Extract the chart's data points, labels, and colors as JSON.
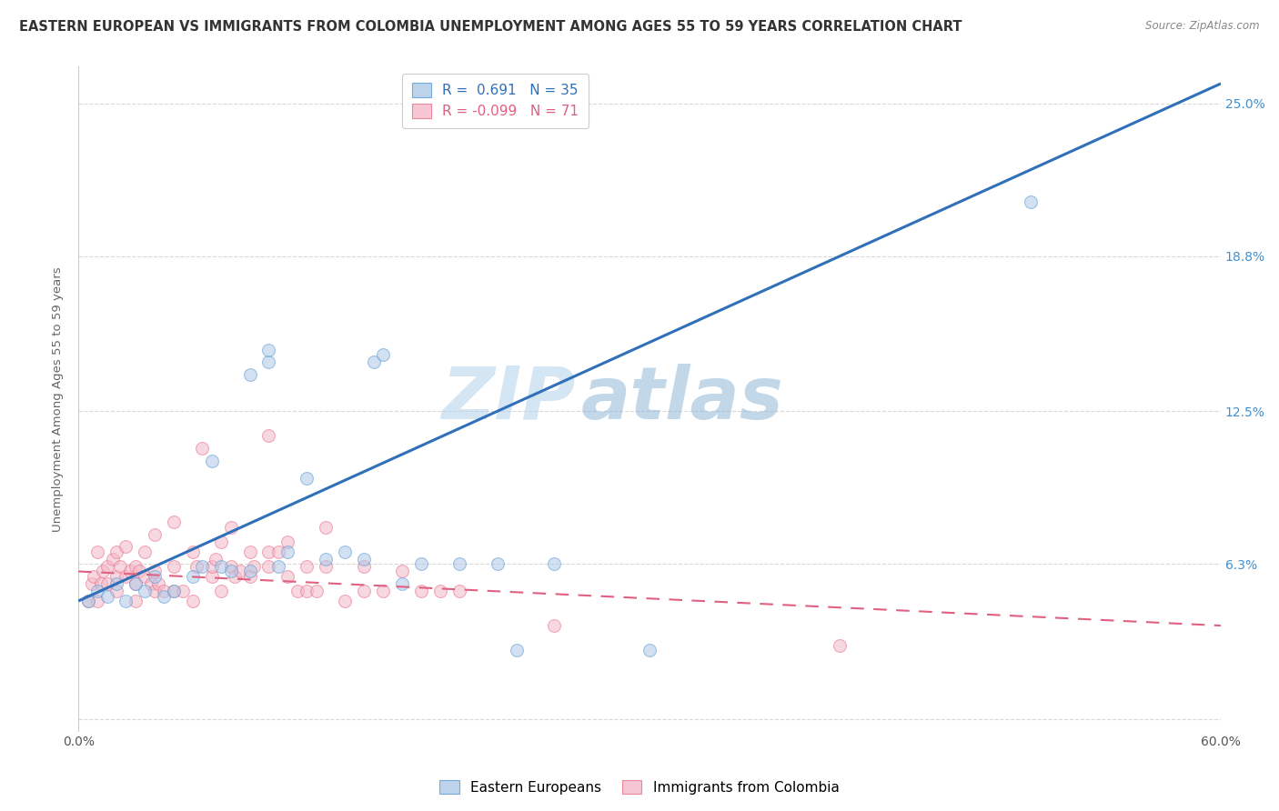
{
  "title": "EASTERN EUROPEAN VS IMMIGRANTS FROM COLOMBIA UNEMPLOYMENT AMONG AGES 55 TO 59 YEARS CORRELATION CHART",
  "source": "Source: ZipAtlas.com",
  "xlabel": "",
  "ylabel": "Unemployment Among Ages 55 to 59 years",
  "xlim": [
    0.0,
    0.6
  ],
  "ylim": [
    -0.005,
    0.265
  ],
  "xticks": [
    0.0,
    0.1,
    0.2,
    0.3,
    0.4,
    0.5,
    0.6
  ],
  "xticklabels": [
    "0.0%",
    "",
    "",
    "",
    "",
    "",
    "60.0%"
  ],
  "ytick_positions": [
    0.0,
    0.063,
    0.125,
    0.188,
    0.25
  ],
  "ytick_labels": [
    "",
    "6.3%",
    "12.5%",
    "18.8%",
    "25.0%"
  ],
  "watermark_zip": "ZIP",
  "watermark_atlas": "atlas",
  "blue_R": 0.691,
  "blue_N": 35,
  "pink_R": -0.099,
  "pink_N": 71,
  "blue_color": "#aec8e8",
  "pink_color": "#f4b8c8",
  "blue_edge_color": "#5b9bd5",
  "pink_edge_color": "#e8708a",
  "blue_line_color": "#3070b8",
  "pink_line_color": "#e06080",
  "blue_line_y_start": 0.048,
  "blue_line_y_end": 0.258,
  "pink_line_y_start": 0.06,
  "pink_line_y_end": 0.038,
  "background_color": "#ffffff",
  "grid_color": "#d8d8d8",
  "title_fontsize": 10.5,
  "label_fontsize": 9.5,
  "tick_fontsize": 10,
  "legend_fontsize": 11,
  "marker_size": 100,
  "marker_alpha": 0.55,
  "blue_scatter_x": [
    0.005,
    0.01,
    0.015,
    0.02,
    0.025,
    0.03,
    0.035,
    0.04,
    0.045,
    0.05,
    0.06,
    0.065,
    0.07,
    0.075,
    0.08,
    0.09,
    0.09,
    0.1,
    0.1,
    0.105,
    0.11,
    0.12,
    0.13,
    0.14,
    0.15,
    0.155,
    0.16,
    0.17,
    0.18,
    0.2,
    0.22,
    0.23,
    0.25,
    0.3,
    0.5
  ],
  "blue_scatter_y": [
    0.048,
    0.052,
    0.05,
    0.055,
    0.048,
    0.055,
    0.052,
    0.058,
    0.05,
    0.052,
    0.058,
    0.062,
    0.105,
    0.062,
    0.06,
    0.06,
    0.14,
    0.145,
    0.15,
    0.062,
    0.068,
    0.098,
    0.065,
    0.068,
    0.065,
    0.145,
    0.148,
    0.055,
    0.063,
    0.063,
    0.063,
    0.028,
    0.063,
    0.028,
    0.21
  ],
  "pink_scatter_x": [
    0.005,
    0.007,
    0.008,
    0.01,
    0.01,
    0.012,
    0.013,
    0.015,
    0.015,
    0.018,
    0.02,
    0.02,
    0.02,
    0.022,
    0.025,
    0.025,
    0.027,
    0.03,
    0.03,
    0.03,
    0.032,
    0.035,
    0.035,
    0.038,
    0.04,
    0.04,
    0.04,
    0.042,
    0.045,
    0.05,
    0.05,
    0.05,
    0.055,
    0.06,
    0.06,
    0.062,
    0.065,
    0.07,
    0.07,
    0.072,
    0.075,
    0.075,
    0.08,
    0.08,
    0.082,
    0.085,
    0.09,
    0.09,
    0.092,
    0.1,
    0.1,
    0.1,
    0.105,
    0.11,
    0.11,
    0.115,
    0.12,
    0.12,
    0.125,
    0.13,
    0.13,
    0.14,
    0.15,
    0.15,
    0.16,
    0.17,
    0.18,
    0.19,
    0.2,
    0.25,
    0.4
  ],
  "pink_scatter_y": [
    0.048,
    0.055,
    0.058,
    0.048,
    0.068,
    0.055,
    0.06,
    0.055,
    0.062,
    0.065,
    0.052,
    0.058,
    0.068,
    0.062,
    0.058,
    0.07,
    0.06,
    0.048,
    0.055,
    0.062,
    0.06,
    0.058,
    0.068,
    0.055,
    0.052,
    0.06,
    0.075,
    0.055,
    0.052,
    0.052,
    0.062,
    0.08,
    0.052,
    0.048,
    0.068,
    0.062,
    0.11,
    0.058,
    0.062,
    0.065,
    0.052,
    0.072,
    0.062,
    0.078,
    0.058,
    0.06,
    0.058,
    0.068,
    0.062,
    0.062,
    0.068,
    0.115,
    0.068,
    0.058,
    0.072,
    0.052,
    0.052,
    0.062,
    0.052,
    0.062,
    0.078,
    0.048,
    0.052,
    0.062,
    0.052,
    0.06,
    0.052,
    0.052,
    0.052,
    0.038,
    0.03
  ]
}
